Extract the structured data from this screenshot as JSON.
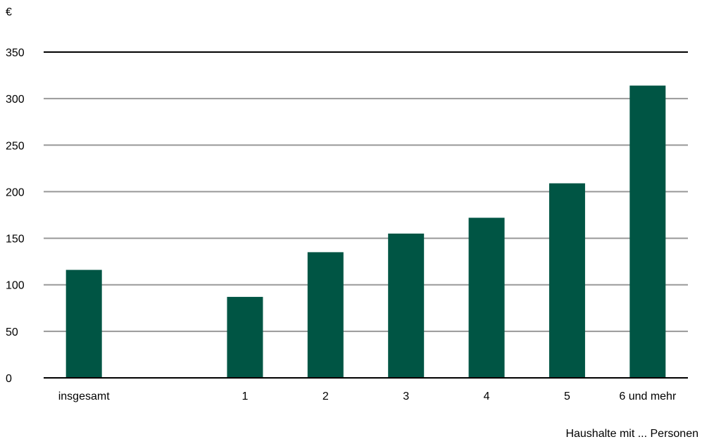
{
  "chart_data": {
    "type": "bar",
    "categories": [
      "insgesamt",
      "",
      "1",
      "2",
      "3",
      "4",
      "5",
      "6 und mehr"
    ],
    "values": [
      116,
      null,
      87,
      135,
      155,
      172,
      209,
      314
    ],
    "ylabel": "€",
    "xlabel": "Haushalte mit ... Personen",
    "ylim": [
      0,
      350
    ],
    "yticks": [
      0,
      50,
      100,
      150,
      200,
      250,
      300,
      350
    ],
    "grid": true,
    "colors": {
      "bar": "#005544",
      "grid": "#999999",
      "axis": "#000000"
    }
  }
}
